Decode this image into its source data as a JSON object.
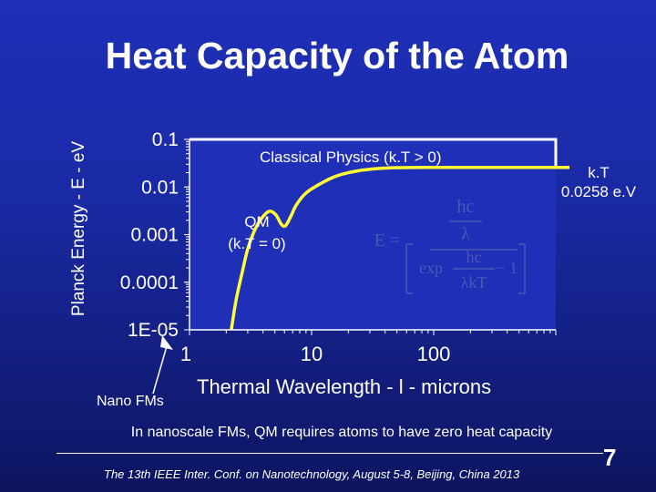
{
  "slide": {
    "title": "Heat Capacity of the Atom",
    "footer_text": "In nanoscale FMs, QM requires atoms to have zero heat capacity",
    "citation": "The 13th IEEE Inter. Conf. on Nanotechnology, August 5-8, Beijing, China 2013",
    "page_number": "7"
  },
  "colors": {
    "background": "#1f2fb8",
    "plot_background": "#1f2fb8",
    "curve": "#ffff33",
    "classical_line": "#ffffff",
    "formula": "#4a58b3"
  },
  "chart_data": {
    "type": "line",
    "title": "",
    "xlabel": "Thermal Wavelength - l - microns",
    "ylabel": "Planck Energy - E - eV",
    "x_scale": "log",
    "y_scale": "log",
    "xlim": [
      1,
      1000
    ],
    "ylim": [
      1e-05,
      0.1
    ],
    "x_ticks": [
      1,
      10,
      100
    ],
    "x_tick_labels": [
      "1",
      "10",
      "100"
    ],
    "y_ticks": [
      0.1,
      0.01,
      0.001,
      0.0001,
      1e-05
    ],
    "y_tick_labels": [
      "0.1",
      "0.01",
      "0.001",
      "0.0001",
      "1E-05"
    ],
    "grid": false,
    "series": [
      {
        "x": [
          2.2,
          2.4,
          2.7,
          3.0,
          3.4,
          3.9,
          4.5,
          5.1,
          5.6,
          5.9,
          6.2,
          6.8,
          7.5,
          9.0,
          12,
          16,
          22,
          32,
          50,
          80,
          130,
          220,
          400,
          700,
          1000
        ],
        "y": [
          1e-05,
          4e-05,
          0.00016,
          0.0005,
          0.0012,
          0.0022,
          0.0031,
          0.0026,
          0.0017,
          0.0015,
          0.0016,
          0.0025,
          0.0042,
          0.0075,
          0.012,
          0.017,
          0.021,
          0.024,
          0.0255,
          0.0257,
          0.0258,
          0.0258,
          0.0258,
          0.0258,
          0.0258
        ]
      }
    ],
    "classical_level": 0.0258,
    "annotations": {
      "classical": "Classical Physics  (k.T > 0)",
      "qm_line1": "QM",
      "qm_line2": "(k.T = 0)",
      "kt_line1": "k.T",
      "kt_line2": "0.0258 e.V",
      "nano": "Nano FMs"
    },
    "formula": {
      "lhs": "E =",
      "num_top": "hc",
      "num_bottom": "λ",
      "exp": "exp",
      "inner_top": "hc",
      "inner_bottom": "λkT",
      "minus_one": "− 1"
    }
  }
}
